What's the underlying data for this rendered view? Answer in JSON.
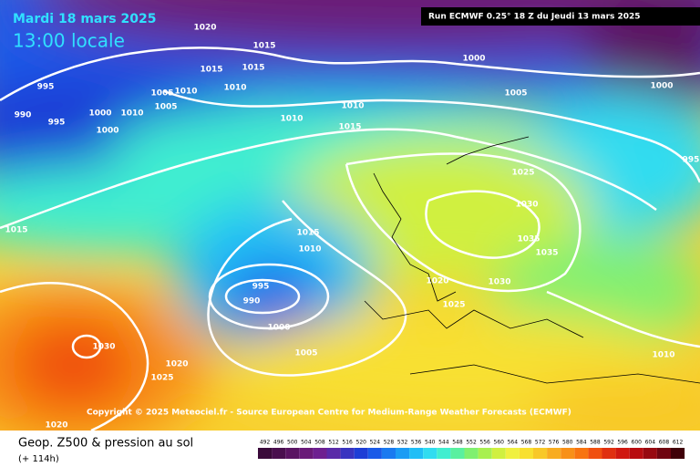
{
  "header": {
    "date": "Mardi 18 mars 2025",
    "time": "13:00 locale",
    "run": "Run ECMWF 0.25° 18 Z du Jeudi 13 mars 2025"
  },
  "isobar_labels": [
    "1020",
    "1015",
    "1015",
    "1015",
    "995",
    "1000",
    "1005",
    "1010",
    "1010",
    "1005",
    "1000",
    "990",
    "995",
    "1000",
    "1010",
    "1005",
    "1010",
    "1010",
    "1015",
    "1000",
    "995",
    "1015",
    "1015",
    "1010",
    "1025",
    "1030",
    "1035",
    "1035",
    "995",
    "990",
    "1000",
    "1020",
    "1030",
    "1025",
    "1005",
    "1030",
    "1020",
    "1025",
    "1010",
    "1020"
  ],
  "copyright": "Copyright © 2025 Meteociel.fr - Source European Centre for Medium-Range Weather Forecasts (ECMWF)",
  "footer": {
    "title": "Geop. Z500 & pression au sol",
    "lead": "(+ 114h)"
  },
  "scale": {
    "labels": [
      492,
      496,
      500,
      504,
      508,
      512,
      516,
      520,
      524,
      528,
      532,
      536,
      540,
      544,
      548,
      552,
      556,
      560,
      564,
      568,
      572,
      576,
      580,
      584,
      588,
      592,
      596,
      600,
      604,
      608,
      612
    ],
    "colors": [
      "#3a0a3a",
      "#4a0f4e",
      "#5a1462",
      "#6a1a78",
      "#6e2090",
      "#5a2aa8",
      "#3a34c0",
      "#1e3ed6",
      "#1a5ae8",
      "#1a7af0",
      "#1c9cf4",
      "#20bef6",
      "#30dcf0",
      "#40eed0",
      "#5af0a0",
      "#80f070",
      "#a8f050",
      "#d0f040",
      "#f0f040",
      "#f8e030",
      "#f8c828",
      "#f8ac20",
      "#f89018",
      "#f87410",
      "#f05010",
      "#e03010",
      "#d01810",
      "#b80c10",
      "#980810",
      "#700410",
      "#400008"
    ]
  }
}
